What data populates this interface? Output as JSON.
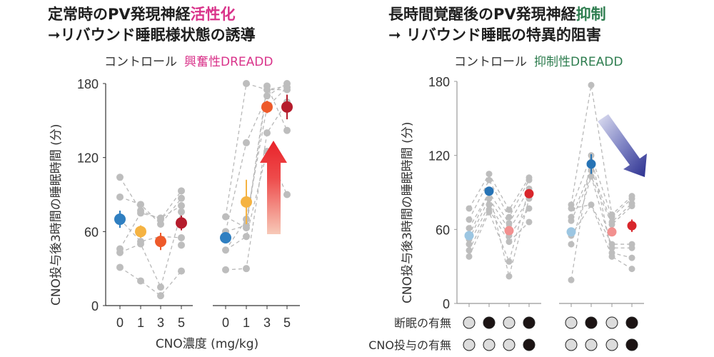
{
  "left_panel": {
    "title_line1_prefix": "定常時のPV発現神経",
    "title_line1_highlight": "活性化",
    "title_line2": "➞リバウンド睡眠様状態の誘導",
    "group1_label": "コントロール",
    "group2_label": "興奮性DREADD",
    "highlight_color": "#d9338a",
    "arrow": {
      "direction": "up",
      "color": "#e8232a"
    }
  },
  "right_panel": {
    "title_line1_prefix": "長時間覚醒後のPV発現神経",
    "title_line1_highlight": "抑制",
    "title_line2": "➞ リバウンド睡眠の特異的阻害",
    "group1_label": "コントロール",
    "group2_label": "抑制性DREADD",
    "highlight_color": "#2e7d4f",
    "arrow": {
      "direction": "down-right",
      "color": "#2b2f8f"
    },
    "row_labels": [
      "断眠の有無",
      "CNO投与の有無"
    ],
    "sleep_deprivation": [
      false,
      true,
      false,
      true
    ],
    "cno_administration": [
      false,
      false,
      false,
      true
    ]
  },
  "chart_data": [
    {
      "type": "scatter",
      "title": "定常時のPV発現神経活性化",
      "ylabel": "CNO投与後3時間の睡眠時間 (分)",
      "xlabel": "CNO濃度 (mg/kg)",
      "ylim": [
        0,
        180
      ],
      "yticks": [
        0,
        60,
        120,
        180
      ],
      "categories": [
        "0",
        "1",
        "3",
        "5"
      ],
      "groups": [
        {
          "name": "コントロール",
          "mean": [
            70,
            60,
            52,
            67
          ],
          "sem": [
            7,
            5,
            7,
            6
          ],
          "mean_colors": [
            "#2f7fc1",
            "#f5b342",
            "#ee5a2a",
            "#b51c2c"
          ],
          "individuals": [
            [
              104,
              46,
              43,
              31,
              88
            ],
            [
              82,
              77,
              75,
              52,
              50,
              20
            ],
            [
              71,
              66,
              70,
              15,
              8
            ],
            [
              93,
              87,
              81,
              76,
              55,
              49,
              28
            ]
          ],
          "lines": [
            [
              104,
              77,
              70,
              93
            ],
            [
              88,
              82,
              66,
              87
            ],
            [
              46,
              75,
              71,
              81
            ],
            [
              43,
              50,
              15,
              76
            ],
            [
              31,
              20,
              8,
              28
            ],
            [
              70,
              52,
              56,
              55
            ]
          ]
        },
        {
          "name": "興奮性DREADD",
          "mean": [
            55,
            84,
            161,
            161
          ],
          "sem": [
            3,
            18,
            5,
            10
          ],
          "mean_colors": [
            "#2f7fc1",
            "#f5b342",
            "#ee5a2a",
            "#b51c2c"
          ],
          "individuals": [
            [
              72,
              60,
              45,
              29
            ],
            [
              180,
              132,
              70,
              65,
              63,
              56,
              30
            ],
            [
              178,
              175,
              170,
              161,
              140,
              125
            ],
            [
              180,
              177,
              175,
              165,
              142,
              90
            ]
          ],
          "lines": [
            [
              72,
              180,
              175,
              178
            ],
            [
              60,
              132,
              170,
              180
            ],
            [
              45,
              70,
              161,
              177
            ],
            [
              29,
              30,
              140,
              165
            ],
            [
              60,
              65,
              178,
              142
            ],
            [
              45,
              56,
              125,
              90
            ],
            [
              72,
              63,
              175,
              175
            ]
          ]
        }
      ]
    },
    {
      "type": "scatter",
      "title": "長時間覚醒後のPV発現神経抑制",
      "ylabel": "CNO投与後3時間の睡眠時間 (分)",
      "ylim": [
        0,
        180
      ],
      "yticks": [
        0,
        60,
        120,
        180
      ],
      "categories": [
        "",
        "",
        "",
        ""
      ],
      "groups": [
        {
          "name": "コントロール",
          "mean": [
            55,
            91,
            59,
            89
          ],
          "sem": [
            3,
            3,
            3,
            3
          ],
          "mean_colors": [
            "#9cc6e2",
            "#2673b5",
            "#f2908f",
            "#d8262b"
          ],
          "individuals": [
            [
              77,
              68,
              61,
              52,
              48,
              43,
              38
            ],
            [
              105,
              100,
              90,
              85,
              80,
              76,
              74
            ],
            [
              76,
              70,
              65,
              60,
              55,
              50,
              34,
              22
            ],
            [
              102,
              100,
              93,
              85,
              77,
              66
            ]
          ],
          "lines": [
            [
              77,
              105,
              76,
              102
            ],
            [
              68,
              100,
              70,
              100
            ],
            [
              61,
              90,
              65,
              93
            ],
            [
              52,
              85,
              60,
              85
            ],
            [
              48,
              80,
              55,
              77
            ],
            [
              43,
              76,
              50,
              66
            ],
            [
              38,
              74,
              34,
              93
            ],
            [
              55,
              90,
              22,
              85
            ]
          ]
        },
        {
          "name": "抑制性DREADD",
          "mean": [
            58,
            113,
            58,
            63
          ],
          "sem": [
            3,
            8,
            3,
            5
          ],
          "mean_colors": [
            "#9cc6e2",
            "#2673b5",
            "#f2908f",
            "#d8262b"
          ],
          "individuals": [
            [
              80,
              77,
              70,
              67,
              55,
              48,
              19
            ],
            [
              177,
              120,
              108,
              103,
              80
            ],
            [
              72,
              70,
              66,
              64,
              48,
              45,
              41,
              38
            ],
            [
              87,
              85,
              81,
              79,
              48,
              45,
              37,
              28
            ]
          ],
          "lines": [
            [
              80,
              177,
              72,
              87
            ],
            [
              77,
              120,
              70,
              85
            ],
            [
              70,
              108,
              66,
              81
            ],
            [
              67,
              103,
              64,
              79
            ],
            [
              55,
              80,
              48,
              48
            ],
            [
              48,
              103,
              45,
              45
            ],
            [
              19,
              120,
              41,
              37
            ],
            [
              77,
              80,
              38,
              28
            ]
          ]
        }
      ]
    }
  ]
}
